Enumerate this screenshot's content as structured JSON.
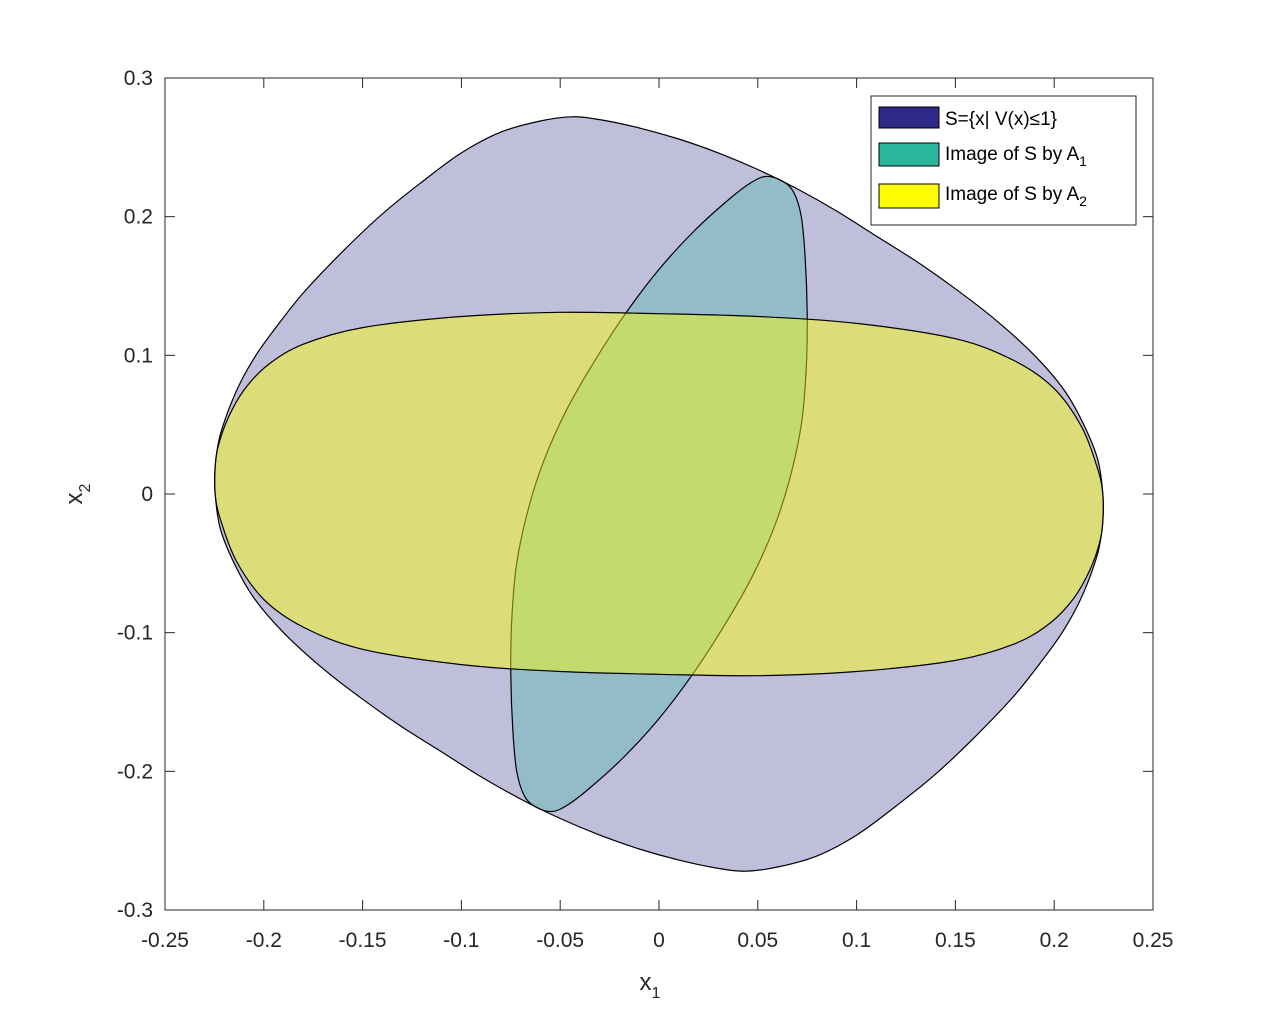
{
  "chart_data": {
    "type": "area",
    "xlim": [
      -0.25,
      0.25
    ],
    "ylim": [
      -0.3,
      0.3
    ],
    "x_ticks": [
      "-0.25",
      "-0.2",
      "-0.15",
      "-0.1",
      "-0.05",
      "0",
      "0.05",
      "0.1",
      "0.15",
      "0.2",
      "0.25"
    ],
    "y_ticks": [
      "-0.3",
      "-0.2",
      "-0.1",
      "0",
      "0.1",
      "0.2",
      "0.3"
    ],
    "xlabel": {
      "base": "x",
      "sub": "1"
    },
    "ylabel": {
      "base": "x",
      "sub": "2"
    },
    "grid": false,
    "legend_position": "top-right",
    "series": [
      {
        "name": "S={x| V(x)≤1}",
        "legend_text": {
          "base": "S={x| V(x)",
          "sym": "≤",
          "tail": "1}"
        },
        "color": "#2e2a87",
        "fill_opacity": 0.3,
        "points": [
          [
            0.2246,
            -0.02
          ],
          [
            0.2225,
            -0.04
          ],
          [
            0.218,
            -0.06
          ],
          [
            0.212,
            -0.08
          ],
          [
            0.204,
            -0.1
          ],
          [
            0.195,
            -0.118
          ],
          [
            0.18,
            -0.145
          ],
          [
            0.16,
            -0.175
          ],
          [
            0.14,
            -0.202
          ],
          [
            0.12,
            -0.225
          ],
          [
            0.1,
            -0.246
          ],
          [
            0.08,
            -0.261
          ],
          [
            0.06,
            -0.269
          ],
          [
            0.044,
            -0.272
          ],
          [
            0.03,
            -0.27
          ],
          [
            0.01,
            -0.264
          ],
          [
            -0.01,
            -0.256
          ],
          [
            -0.03,
            -0.246
          ],
          [
            -0.05,
            -0.234
          ],
          [
            -0.07,
            -0.22
          ],
          [
            -0.09,
            -0.204
          ],
          [
            -0.11,
            -0.186
          ],
          [
            -0.13,
            -0.168
          ],
          [
            -0.15,
            -0.148
          ],
          [
            -0.17,
            -0.126
          ],
          [
            -0.19,
            -0.1
          ],
          [
            -0.205,
            -0.075
          ],
          [
            -0.215,
            -0.05
          ],
          [
            -0.222,
            -0.025
          ],
          [
            -0.2246,
            0.0
          ],
          [
            -0.2246,
            0.02
          ],
          [
            -0.2225,
            0.04
          ],
          [
            -0.218,
            0.06
          ],
          [
            -0.212,
            0.08
          ],
          [
            -0.204,
            0.1
          ],
          [
            -0.195,
            0.118
          ],
          [
            -0.18,
            0.145
          ],
          [
            -0.16,
            0.175
          ],
          [
            -0.14,
            0.202
          ],
          [
            -0.12,
            0.225
          ],
          [
            -0.1,
            0.246
          ],
          [
            -0.08,
            0.261
          ],
          [
            -0.06,
            0.269
          ],
          [
            -0.044,
            0.272
          ],
          [
            -0.03,
            0.27
          ],
          [
            -0.01,
            0.264
          ],
          [
            0.01,
            0.256
          ],
          [
            0.03,
            0.246
          ],
          [
            0.05,
            0.234
          ],
          [
            0.07,
            0.22
          ],
          [
            0.09,
            0.204
          ],
          [
            0.11,
            0.186
          ],
          [
            0.13,
            0.168
          ],
          [
            0.15,
            0.148
          ],
          [
            0.17,
            0.126
          ],
          [
            0.19,
            0.1
          ],
          [
            0.205,
            0.075
          ],
          [
            0.215,
            0.05
          ],
          [
            0.222,
            0.025
          ],
          [
            0.2246,
            0.0
          ]
        ]
      },
      {
        "name": "Image of S by A1",
        "legend_text": {
          "base": "Image of S by A",
          "sub": "1"
        },
        "color": "#2bb59a",
        "fill_opacity": 0.3,
        "points": [
          [
            0.054,
            0.229
          ],
          [
            0.062,
            0.226
          ],
          [
            0.068,
            0.218
          ],
          [
            0.072,
            0.2
          ],
          [
            0.074,
            0.17
          ],
          [
            0.075,
            0.13
          ],
          [
            0.0745,
            0.09
          ],
          [
            0.072,
            0.05
          ],
          [
            0.066,
            0.01
          ],
          [
            0.058,
            -0.025
          ],
          [
            0.047,
            -0.06
          ],
          [
            0.033,
            -0.095
          ],
          [
            0.017,
            -0.13
          ],
          [
            0.0,
            -0.162
          ],
          [
            -0.018,
            -0.19
          ],
          [
            -0.035,
            -0.212
          ],
          [
            -0.046,
            -0.224
          ],
          [
            -0.054,
            -0.229
          ],
          [
            -0.062,
            -0.226
          ],
          [
            -0.068,
            -0.218
          ],
          [
            -0.072,
            -0.2
          ],
          [
            -0.074,
            -0.17
          ],
          [
            -0.075,
            -0.13
          ],
          [
            -0.0745,
            -0.09
          ],
          [
            -0.072,
            -0.05
          ],
          [
            -0.066,
            -0.01
          ],
          [
            -0.058,
            0.025
          ],
          [
            -0.047,
            0.06
          ],
          [
            -0.033,
            0.095
          ],
          [
            -0.017,
            0.13
          ],
          [
            0.0,
            0.162
          ],
          [
            0.018,
            0.19
          ],
          [
            0.035,
            0.212
          ],
          [
            0.046,
            0.224
          ]
        ]
      },
      {
        "name": "Image of S by A2",
        "legend_text": {
          "base": "Image of S by A",
          "sub": "2"
        },
        "color": "#ffff00",
        "fill_opacity": 0.45,
        "points": [
          [
            0.2246,
            -0.02
          ],
          [
            0.223,
            -0.035
          ],
          [
            0.218,
            -0.055
          ],
          [
            0.21,
            -0.075
          ],
          [
            0.198,
            -0.093
          ],
          [
            0.18,
            -0.108
          ],
          [
            0.15,
            -0.12
          ],
          [
            0.1,
            -0.128
          ],
          [
            0.05,
            -0.131
          ],
          [
            0.0,
            -0.13
          ],
          [
            -0.05,
            -0.128
          ],
          [
            -0.1,
            -0.123
          ],
          [
            -0.15,
            -0.112
          ],
          [
            -0.18,
            -0.096
          ],
          [
            -0.2,
            -0.076
          ],
          [
            -0.214,
            -0.048
          ],
          [
            -0.222,
            -0.018
          ],
          [
            -0.2246,
            0.0
          ],
          [
            -0.2246,
            0.02
          ],
          [
            -0.223,
            0.035
          ],
          [
            -0.218,
            0.055
          ],
          [
            -0.21,
            0.075
          ],
          [
            -0.198,
            0.093
          ],
          [
            -0.18,
            0.108
          ],
          [
            -0.15,
            0.12
          ],
          [
            -0.1,
            0.128
          ],
          [
            -0.05,
            0.131
          ],
          [
            0.0,
            0.13
          ],
          [
            0.05,
            0.128
          ],
          [
            0.1,
            0.123
          ],
          [
            0.15,
            0.112
          ],
          [
            0.18,
            0.096
          ],
          [
            0.2,
            0.076
          ],
          [
            0.214,
            0.048
          ],
          [
            0.222,
            0.018
          ],
          [
            0.2246,
            0.0
          ]
        ]
      }
    ]
  }
}
